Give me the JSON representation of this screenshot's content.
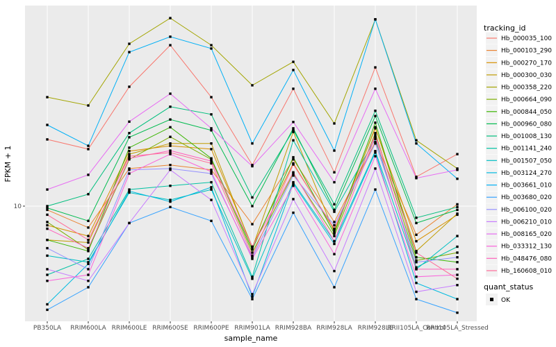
{
  "figure": {
    "background": "#FFFFFF",
    "panel_background": "#EBEBEB",
    "gridline_color": "#FFFFFF",
    "tick_color": "#333333",
    "tick_label_color": "#4D4D4D",
    "point_color": "#000000",
    "legend_key_fill": "#F2F2F2"
  },
  "axes": {
    "x_title": "sample_name",
    "y_title": "FPKM + 1",
    "y_tick_label": "10"
  },
  "legend": {
    "tracking_title": "tracking_id",
    "quant_title": "quant_status",
    "quant_item_label": "OK",
    "quant_symbol": "black-square"
  },
  "chart_data": {
    "type": "line",
    "xlabel": "sample_name",
    "ylabel": "FPKM + 1",
    "y_scale": "log10",
    "y_tick_values": [
      10
    ],
    "y_panel_value_range": [
      2.8,
      90.5
    ],
    "grid": "major-only",
    "legend_position": "right",
    "point_marker": "black-square",
    "categories": [
      "PB350LA",
      "RRIM600LA",
      "RRIM600LE",
      "RRIM600SE",
      "RRIM600PE",
      "RRIM901LA",
      "RRIM928BA",
      "RRIM928LA",
      "RRIM928LE",
      "RRII105LA_Control",
      "RRII105LA_Stressed"
    ],
    "series": [
      {
        "name": "Hb_000035_100",
        "color": "#F8766D",
        "values": [
          20.8,
          18.7,
          37.1,
          58.6,
          33.1,
          15.7,
          36.3,
          14.5,
          45.9,
          13.8,
          17.7
        ]
      },
      {
        "name": "Hb_000103_290",
        "color": "#EA8331",
        "values": [
          9.6,
          7.9,
          15.1,
          15.7,
          14.9,
          8.2,
          16.7,
          8.4,
          20.2,
          7.3,
          10.2
        ]
      },
      {
        "name": "Hb_000270_170",
        "color": "#D89000",
        "values": [
          8.1,
          7.2,
          18.3,
          19.4,
          18.7,
          6.4,
          16.0,
          7.7,
          23.5,
          6.8,
          9.1
        ]
      },
      {
        "name": "Hb_000300_030",
        "color": "#C09B00",
        "values": [
          6.9,
          6.7,
          17.7,
          19.9,
          19.9,
          6.3,
          22.6,
          7.5,
          23.8,
          6.1,
          9.2
        ]
      },
      {
        "name": "Hb_000358_220",
        "color": "#A3A500",
        "values": [
          33.1,
          30.2,
          59.5,
          78.9,
          58.6,
          37.7,
          48.8,
          24.8,
          77.8,
          20.6,
          15.1
        ]
      },
      {
        "name": "Hb_000664_090",
        "color": "#7CAE00",
        "values": [
          8.4,
          6.2,
          16.7,
          21.4,
          16.7,
          6.0,
          14.3,
          7.2,
          22.3,
          5.5,
          6.0
        ]
      },
      {
        "name": "Hb_000844_050",
        "color": "#39B600",
        "values": [
          6.9,
          6.1,
          19.0,
          23.8,
          16.9,
          6.2,
          17.1,
          7.4,
          25.0,
          5.7,
          5.4
        ]
      },
      {
        "name": "Hb_000960_080",
        "color": "#00BB4E",
        "values": [
          9.8,
          8.5,
          21.3,
          25.9,
          23.0,
          10.0,
          23.5,
          9.6,
          26.9,
          8.3,
          9.6
        ]
      },
      {
        "name": "Hb_001008_130",
        "color": "#00BF7D",
        "values": [
          10.0,
          11.4,
          22.3,
          29.8,
          27.4,
          11.0,
          23.0,
          10.2,
          28.5,
          8.8,
          9.9
        ]
      },
      {
        "name": "Hb_001141_240",
        "color": "#00C1A3",
        "values": [
          4.7,
          5.6,
          12.0,
          12.5,
          13.0,
          4.6,
          20.6,
          9.4,
          20.9,
          5.1,
          6.4
        ]
      },
      {
        "name": "Hb_001507_050",
        "color": "#00BFC4",
        "values": [
          5.8,
          5.4,
          11.6,
          10.7,
          12.0,
          4.5,
          13.0,
          6.8,
          18.3,
          5.0,
          7.2
        ]
      },
      {
        "name": "Hb_003124_270",
        "color": "#00BAE0",
        "values": [
          3.4,
          5.3,
          11.8,
          10.5,
          12.3,
          3.7,
          12.8,
          6.6,
          18.0,
          4.3,
          3.6
        ]
      },
      {
        "name": "Hb_003661_010",
        "color": "#00B0F6",
        "values": [
          24.4,
          19.4,
          54.3,
          64.3,
          56.5,
          19.9,
          44.6,
          18.4,
          77.8,
          19.9,
          13.5
        ]
      },
      {
        "name": "Hb_003680_020",
        "color": "#35A2FF",
        "values": [
          3.2,
          4.1,
          8.3,
          9.9,
          8.5,
          3.6,
          9.3,
          4.1,
          12.0,
          3.6,
          3.1
        ]
      },
      {
        "name": "Hb_006100_020",
        "color": "#9590FF",
        "values": [
          6.3,
          5.0,
          14.9,
          15.1,
          14.3,
          5.7,
          14.0,
          8.1,
          19.9,
          5.4,
          5.7
        ]
      },
      {
        "name": "Hb_006210_010",
        "color": "#C77CFF",
        "values": [
          5.0,
          4.4,
          8.3,
          14.9,
          10.7,
          3.8,
          10.8,
          4.9,
          15.1,
          3.9,
          4.2
        ]
      },
      {
        "name": "Hb_008165_020",
        "color": "#E76BF3",
        "values": [
          12.0,
          14.1,
          25.3,
          34.4,
          23.5,
          15.5,
          25.2,
          13.0,
          36.3,
          13.6,
          14.9
        ]
      },
      {
        "name": "Hb_033312_130",
        "color": "#FA62DB",
        "values": [
          4.4,
          4.7,
          14.3,
          17.7,
          14.6,
          5.6,
          12.5,
          5.9,
          17.3,
          4.6,
          4.7
        ]
      },
      {
        "name": "Hb_048476_080",
        "color": "#FF62BC",
        "values": [
          7.8,
          6.3,
          16.9,
          18.4,
          16.4,
          6.4,
          14.5,
          6.8,
          21.4,
          5.0,
          5.0
        ]
      },
      {
        "name": "Hb_160608_010",
        "color": "#FF6A98",
        "values": [
          9.1,
          6.9,
          17.3,
          18.0,
          16.0,
          5.8,
          15.8,
          7.8,
          21.8,
          6.0,
          4.5
        ]
      }
    ]
  }
}
